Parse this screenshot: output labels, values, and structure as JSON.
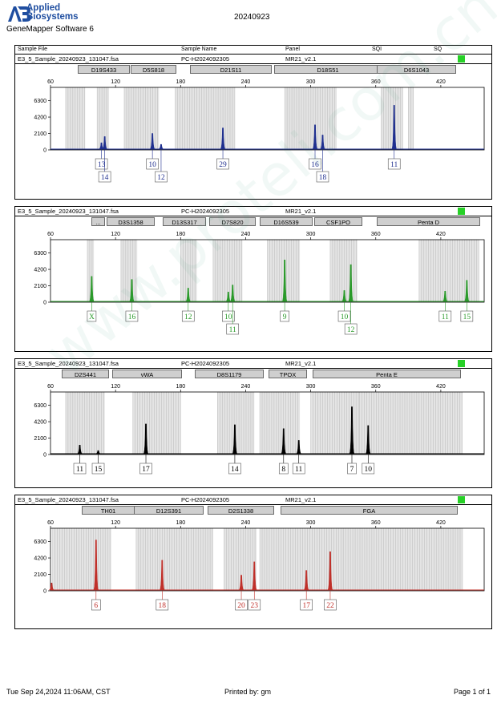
{
  "header": {
    "logo_line1": "Applied",
    "logo_line2": "Biosystems",
    "app_name": "GeneMapper Software 6",
    "report_date": "20240923",
    "col_sample_file": "Sample File",
    "col_sample_name": "Sample Name",
    "col_panel": "Panel",
    "col_sqi": "SQI",
    "col_sq": "SQ"
  },
  "colors": {
    "blue": "#1f2f8f",
    "green": "#2a9a2a",
    "black": "#000000",
    "red": "#c0302a",
    "quality_flag": "#27d127"
  },
  "footer": {
    "datetime": "Tue Sep 24,2024 11:06AM, CST",
    "printed_by": "Printed by: gm",
    "page": "Page 1 of 1"
  },
  "watermark": "www.proteli.com.cn",
  "chart_data": [
    {
      "type": "electropherogram",
      "dye": "blue",
      "sample_file": "E3_5_Sample_20240923_131047.fsa",
      "sample_name": "PC-H2024092305",
      "panel": "MR21_v2.1",
      "xlim": [
        60,
        460
      ],
      "x_ticks": [
        60,
        120,
        180,
        240,
        300,
        360,
        420
      ],
      "ylim": [
        0,
        8000
      ],
      "y_ticks": [
        0,
        2100,
        4200,
        6300
      ],
      "loci": [
        "D19S433",
        "D5S818",
        "D21S11",
        "D18S51",
        "D6S1043"
      ],
      "peaks": [
        {
          "x": 107,
          "y": 900,
          "allele": "13"
        },
        {
          "x": 110,
          "y": 1700,
          "allele": "14"
        },
        {
          "x": 154,
          "y": 2100,
          "allele": "10"
        },
        {
          "x": 162,
          "y": 700,
          "allele": "12"
        },
        {
          "x": 219,
          "y": 2800,
          "allele": "29"
        },
        {
          "x": 304,
          "y": 3200,
          "allele": "16"
        },
        {
          "x": 311,
          "y": 1900,
          "allele": "18"
        },
        {
          "x": 377,
          "y": 5700,
          "allele": "11"
        }
      ]
    },
    {
      "type": "electropherogram",
      "dye": "green",
      "sample_file": "E3_5_Sample_20240923_131047.fsa",
      "sample_name": "PC-H2024092305",
      "panel": "MR21_v2.1",
      "xlim": [
        60,
        460
      ],
      "x_ticks": [
        60,
        120,
        180,
        240,
        300,
        360,
        420
      ],
      "ylim": [
        0,
        8000
      ],
      "y_ticks": [
        0,
        2100,
        4200,
        6300
      ],
      "loci": [
        "...",
        "D3S1358",
        "D13S317",
        "D7S820",
        "D16S539",
        "CSF1PO",
        "Penta D"
      ],
      "peaks": [
        {
          "x": 98,
          "y": 3300,
          "allele": "X"
        },
        {
          "x": 135,
          "y": 2900,
          "allele": "16"
        },
        {
          "x": 187,
          "y": 1800,
          "allele": "12"
        },
        {
          "x": 224,
          "y": 1300,
          "allele": "10"
        },
        {
          "x": 228,
          "y": 2200,
          "allele": "11"
        },
        {
          "x": 276,
          "y": 5400,
          "allele": "9"
        },
        {
          "x": 331,
          "y": 1500,
          "allele": "10"
        },
        {
          "x": 337,
          "y": 4800,
          "allele": "12"
        },
        {
          "x": 424,
          "y": 1400,
          "allele": "11"
        },
        {
          "x": 444,
          "y": 2800,
          "allele": "15"
        }
      ]
    },
    {
      "type": "electropherogram",
      "dye": "black",
      "sample_file": "E3_5_Sample_20240923_131047.fsa",
      "sample_name": "PC-H2024092305",
      "panel": "MR21_v2.1",
      "xlim": [
        60,
        460
      ],
      "x_ticks": [
        60,
        120,
        180,
        240,
        300,
        360,
        420
      ],
      "ylim": [
        0,
        8000
      ],
      "y_ticks": [
        0,
        2100,
        4200,
        6300
      ],
      "loci": [
        "D2S441",
        "vWA",
        "D8S1179",
        "TPOX",
        "Penta E"
      ],
      "peaks": [
        {
          "x": 87,
          "y": 1200,
          "allele": "11"
        },
        {
          "x": 104,
          "y": 500,
          "allele": "15"
        },
        {
          "x": 148,
          "y": 3900,
          "allele": "17"
        },
        {
          "x": 230,
          "y": 3800,
          "allele": "14"
        },
        {
          "x": 275,
          "y": 3300,
          "allele": "8"
        },
        {
          "x": 289,
          "y": 1800,
          "allele": "11"
        },
        {
          "x": 338,
          "y": 6100,
          "allele": "7"
        },
        {
          "x": 353,
          "y": 3700,
          "allele": "10"
        }
      ]
    },
    {
      "type": "electropherogram",
      "dye": "red",
      "sample_file": "E3_5_Sample_20240923_131047.fsa",
      "sample_name": "PC-H2024092305",
      "panel": "MR21_v2.1",
      "xlim": [
        60,
        460
      ],
      "x_ticks": [
        60,
        120,
        180,
        240,
        300,
        360,
        420
      ],
      "ylim": [
        0,
        8000
      ],
      "y_ticks": [
        0,
        2100,
        4200,
        6300
      ],
      "loci": [
        "TH01",
        "D12S391",
        "D2S1338",
        "FGA"
      ],
      "peaks": [
        {
          "x": 61,
          "y": 1000,
          "allele": ""
        },
        {
          "x": 102,
          "y": 6500,
          "allele": "6"
        },
        {
          "x": 163,
          "y": 3900,
          "allele": "18"
        },
        {
          "x": 236,
          "y": 2000,
          "allele": "20"
        },
        {
          "x": 248,
          "y": 3700,
          "allele": "23"
        },
        {
          "x": 296,
          "y": 2600,
          "allele": "17"
        },
        {
          "x": 318,
          "y": 5000,
          "allele": "22"
        }
      ]
    }
  ]
}
